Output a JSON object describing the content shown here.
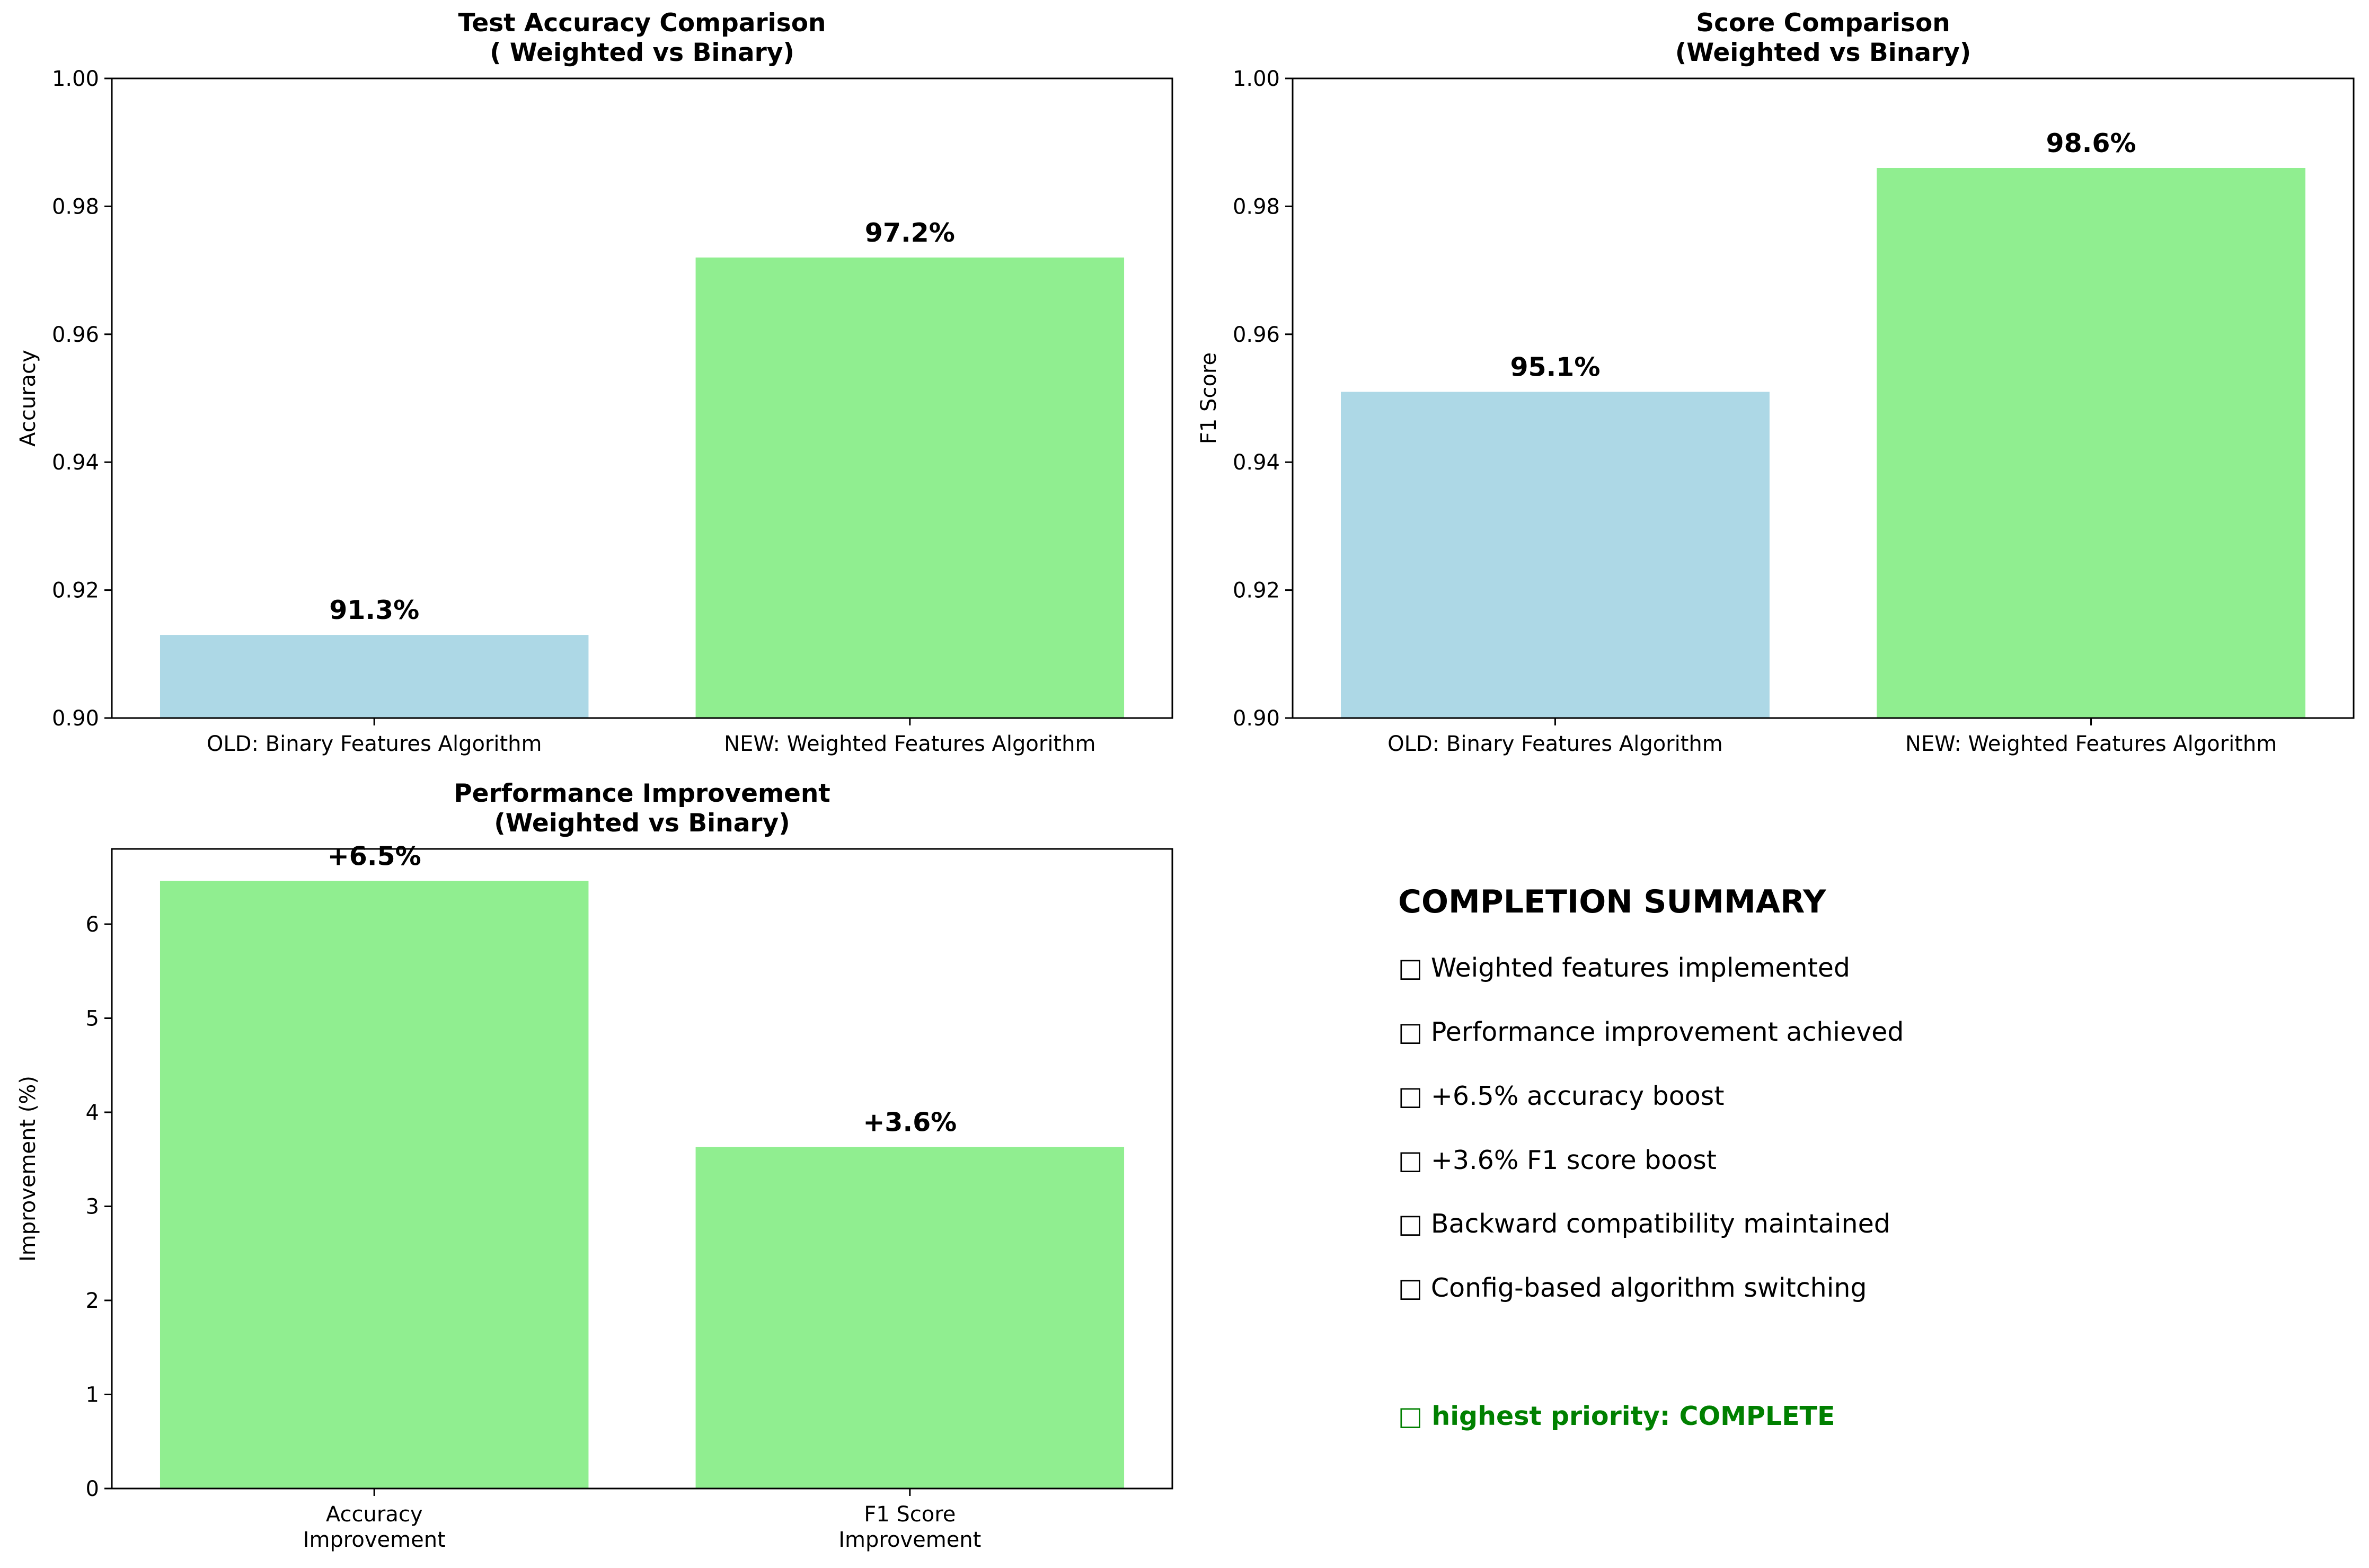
{
  "chart_data": [
    {
      "type": "bar",
      "title": [
        "Test Accuracy Comparison",
        "( Weighted vs Binary)"
      ],
      "xlabel": "",
      "ylabel": "Accuracy",
      "categories": [
        "OLD: Binary Features Algorithm",
        "NEW: Weighted Features Algorithm"
      ],
      "values": [
        0.913,
        0.972
      ],
      "data_labels": [
        "91.3%",
        "97.2%"
      ],
      "bar_colors": [
        "#add8e6",
        "#90ee90"
      ],
      "ylim": [
        0.9,
        1.0
      ],
      "yticks": [
        0.9,
        0.92,
        0.94,
        0.96,
        0.98,
        1.0
      ],
      "ytick_labels": [
        "0.90",
        "0.92",
        "0.94",
        "0.96",
        "0.98",
        "1.00"
      ],
      "grid": false
    },
    {
      "type": "bar",
      "title": [
        "Score Comparison",
        "(Weighted vs Binary)"
      ],
      "xlabel": "",
      "ylabel": "F1 Score",
      "categories": [
        "OLD: Binary Features Algorithm",
        "NEW: Weighted Features Algorithm"
      ],
      "values": [
        0.951,
        0.986
      ],
      "data_labels": [
        "95.1%",
        "98.6%"
      ],
      "bar_colors": [
        "#add8e6",
        "#90ee90"
      ],
      "ylim": [
        0.9,
        1.0
      ],
      "yticks": [
        0.9,
        0.92,
        0.94,
        0.96,
        0.98,
        1.0
      ],
      "ytick_labels": [
        "0.90",
        "0.92",
        "0.94",
        "0.96",
        "0.98",
        "1.00"
      ],
      "grid": false
    },
    {
      "type": "bar",
      "title": [
        "Performance Improvement",
        "(Weighted vs Binary)"
      ],
      "xlabel": "",
      "ylabel": "Improvement (%)",
      "categories": [
        [
          "Accuracy",
          "Improvement"
        ],
        [
          "F1 Score",
          "Improvement"
        ]
      ],
      "values": [
        6.46,
        3.63
      ],
      "data_labels": [
        "+6.5%",
        "+3.6%"
      ],
      "bar_colors": [
        "#90ee90",
        "#90ee90"
      ],
      "ylim": [
        0,
        6.8
      ],
      "yticks": [
        0,
        1,
        2,
        3,
        4,
        5,
        6
      ],
      "ytick_labels": [
        "0",
        "1",
        "2",
        "3",
        "4",
        "5",
        "6"
      ],
      "grid": false
    }
  ],
  "summary": {
    "title": "COMPLETION SUMMARY",
    "items": [
      "□ Weighted features implemented",
      "□ Performance improvement achieved",
      "□ +6.5% accuracy boost",
      "□ +3.6% F1 score boost",
      "□ Backward compatibility maintained",
      "□ Config-based algorithm switching"
    ],
    "status": "□ highest priority: COMPLETE",
    "status_color": "#008000"
  }
}
